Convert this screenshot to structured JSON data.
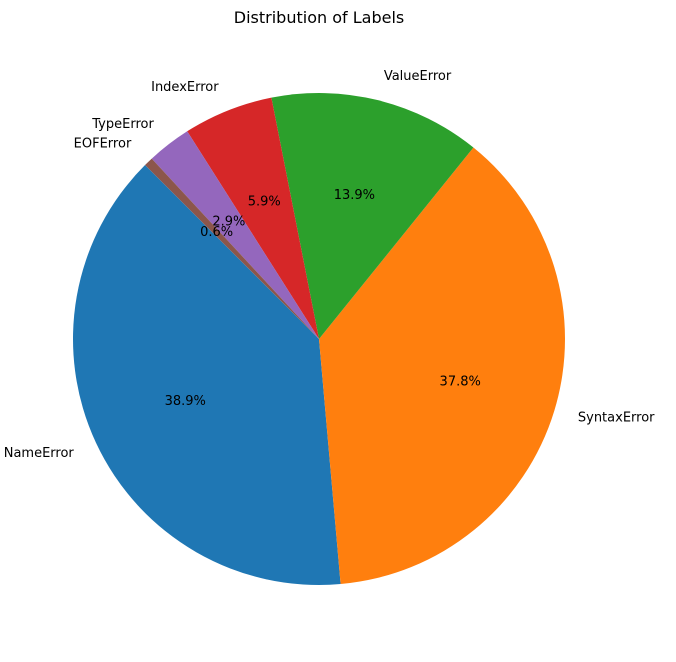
{
  "chart_data": {
    "type": "pie",
    "title": "Distribution of Labels",
    "start_angle_deg": 135,
    "direction": "counterclockwise",
    "slices": [
      {
        "label": "NameError",
        "value": 38.9,
        "pct_label": "38.9%",
        "color": "#1f77b4"
      },
      {
        "label": "SyntaxError",
        "value": 37.8,
        "pct_label": "37.8%",
        "color": "#ff7f0e"
      },
      {
        "label": "ValueError",
        "value": 13.9,
        "pct_label": "13.9%",
        "color": "#2ca02c"
      },
      {
        "label": "IndexError",
        "value": 5.9,
        "pct_label": "5.9%",
        "color": "#d62728"
      },
      {
        "label": "TypeError",
        "value": 2.9,
        "pct_label": "2.9%",
        "color": "#9467bd"
      },
      {
        "label": "EOFError",
        "value": 0.6,
        "pct_label": "0.6%",
        "color": "#8c564b"
      }
    ]
  }
}
